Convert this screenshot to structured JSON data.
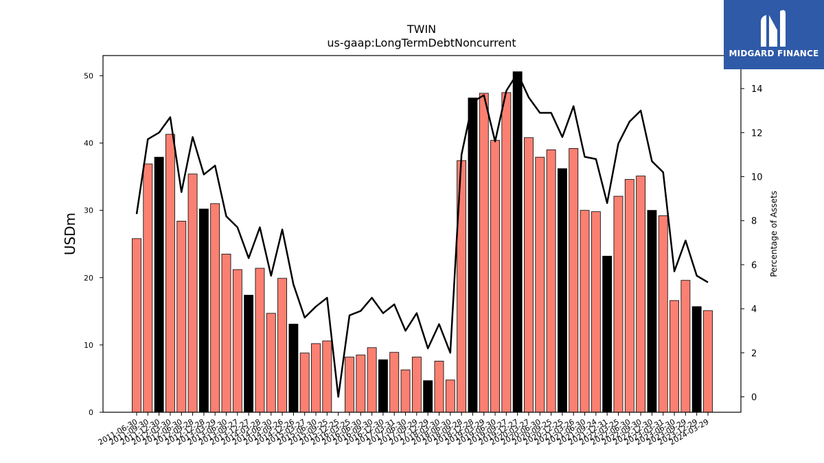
{
  "chart_data": {
    "type": "bar",
    "title": "TWIN",
    "subtitle": "us-gaap:LongTermDebtNoncurrent",
    "ylabel": "USDm",
    "y2label": "Percentage of Assets",
    "ylim": [
      0,
      53
    ],
    "y2lim": [
      -0.7,
      15.5
    ],
    "yticks": [
      0,
      10,
      20,
      30,
      40,
      50
    ],
    "y2ticks": [
      0,
      2,
      4,
      6,
      8,
      10,
      12,
      14
    ],
    "categories": [
      "2011-06-30",
      "2011-09-30",
      "2011-12-30",
      "2012-03-30",
      "2012-06-30",
      "2012-09-28",
      "2012-12-28",
      "2013-03-29",
      "2013-06-30",
      "2013-09-27",
      "2013-12-27",
      "2014-03-28",
      "2014-06-30",
      "2014-09-26",
      "2014-12-26",
      "2015-03-27",
      "2015-06-30",
      "2015-09-25",
      "2015-12-25",
      "2016-03-25",
      "2016-06-30",
      "2016-09-30",
      "2016-12-30",
      "2017-03-31",
      "2017-06-30",
      "2017-09-29",
      "2017-12-29",
      "2018-03-30",
      "2018-06-30",
      "2018-09-28",
      "2018-12-28",
      "2019-03-29",
      "2019-06-30",
      "2019-09-27",
      "2019-12-27",
      "2020-03-27",
      "2020-06-30",
      "2020-09-25",
      "2020-12-25",
      "2021-03-26",
      "2021-06-30",
      "2021-09-24",
      "2021-12-31",
      "2022-03-25",
      "2022-06-30",
      "2022-09-30",
      "2022-12-30",
      "2023-03-31",
      "2023-06-30",
      "2023-09-29",
      "2023-12-29",
      "2024-03-29"
    ],
    "series": [
      {
        "type": "bar",
        "values": [
          25.8,
          36.9,
          37.9,
          41.3,
          28.4,
          35.4,
          30.2,
          31.0,
          23.5,
          21.2,
          17.4,
          21.4,
          14.7,
          19.9,
          13.1,
          8.8,
          10.2,
          10.6,
          0.0,
          8.2,
          8.5,
          9.6,
          7.8,
          8.9,
          6.3,
          8.2,
          4.7,
          7.6,
          4.8,
          37.4,
          46.7,
          47.4,
          40.4,
          47.5,
          50.6,
          40.8,
          37.9,
          39.0,
          36.2,
          39.2,
          30.0,
          29.8,
          23.2,
          32.1,
          34.6,
          35.1,
          30.0,
          29.2,
          16.6,
          19.6,
          15.7,
          15.1
        ]
      },
      {
        "type": "line",
        "axis": "right",
        "values": [
          8.3,
          11.7,
          12.0,
          12.7,
          9.3,
          11.8,
          10.1,
          10.5,
          8.2,
          7.7,
          6.3,
          7.7,
          5.5,
          7.6,
          5.1,
          3.6,
          4.1,
          4.5,
          0.0,
          3.7,
          3.9,
          4.5,
          3.8,
          4.2,
          3.0,
          3.8,
          2.2,
          3.3,
          2.0,
          11.0,
          13.4,
          13.7,
          11.6,
          13.9,
          14.7,
          13.6,
          12.9,
          12.9,
          11.8,
          13.2,
          10.9,
          10.8,
          8.8,
          11.5,
          12.5,
          13.0,
          10.7,
          10.2,
          5.7,
          7.1,
          5.5,
          5.2
        ]
      }
    ],
    "colors": {
      "bar": "#fa8072",
      "bar_highlight": "#000000",
      "line": "#000000",
      "edge": "#000000"
    },
    "highlight_every": 4,
    "grid": false
  },
  "logo": {
    "name": "MIDGARD FINANCE"
  }
}
